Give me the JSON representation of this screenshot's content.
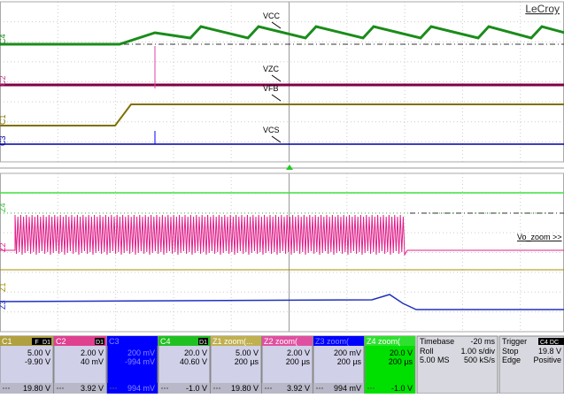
{
  "brand": "LeCroy",
  "trace_labels": {
    "vcc": "VCC",
    "vzc": "VZC",
    "vfb": "VFB",
    "vcs": "VCS",
    "zoom": "Vo_zoom >>"
  },
  "channel_markers": [
    "C4",
    "C2",
    "C1",
    "C3",
    "Z4",
    "Z2",
    "Z1",
    "Z3"
  ],
  "panels": [
    {
      "header": "C1",
      "badges": [
        "F",
        "D1"
      ],
      "lines": [
        "5.00 V",
        "-9.90 V"
      ],
      "footer": "19.80 V"
    },
    {
      "header": "C2",
      "badges": [
        "D1"
      ],
      "lines": [
        "2.00 V",
        "40 mV"
      ],
      "footer": "3.92 V"
    },
    {
      "header": "C3",
      "badges": [],
      "lines": [
        "200 mV",
        "-994 mV"
      ],
      "footer": "994 mV"
    },
    {
      "header": "C4",
      "badges": [
        "D1"
      ],
      "lines": [
        "20.0 V",
        "40.60 V"
      ],
      "footer": "-1.0 V"
    },
    {
      "header": "Z1 zoom(...",
      "badges": [],
      "lines": [
        "5.00 V",
        "200 µs"
      ],
      "footer": "19.80 V"
    },
    {
      "header": "Z2 zoom(",
      "badges": [],
      "lines": [
        "2.00 V",
        "200 µs"
      ],
      "footer": "3.92 V"
    },
    {
      "header": "Z3 zoom(",
      "badges": [],
      "lines": [
        "200 mV",
        "200 µs"
      ],
      "footer": "994 mV"
    },
    {
      "header": "Z4 zoom(",
      "badges": [],
      "lines": [
        "20.0 V",
        "200 µs"
      ],
      "footer": "-1.0 V"
    }
  ],
  "timebase": {
    "title": "Timebase",
    "value": "-20 ms",
    "rows": [
      [
        "Roll",
        "1.00 s/div"
      ],
      [
        "5.00 MS",
        "500 kS/s"
      ]
    ]
  },
  "trigger": {
    "title": "Trigger",
    "badge": "C4 DC",
    "rows": [
      [
        "Stop",
        "19.8 V"
      ],
      [
        "Edge",
        "Positive"
      ]
    ]
  }
}
